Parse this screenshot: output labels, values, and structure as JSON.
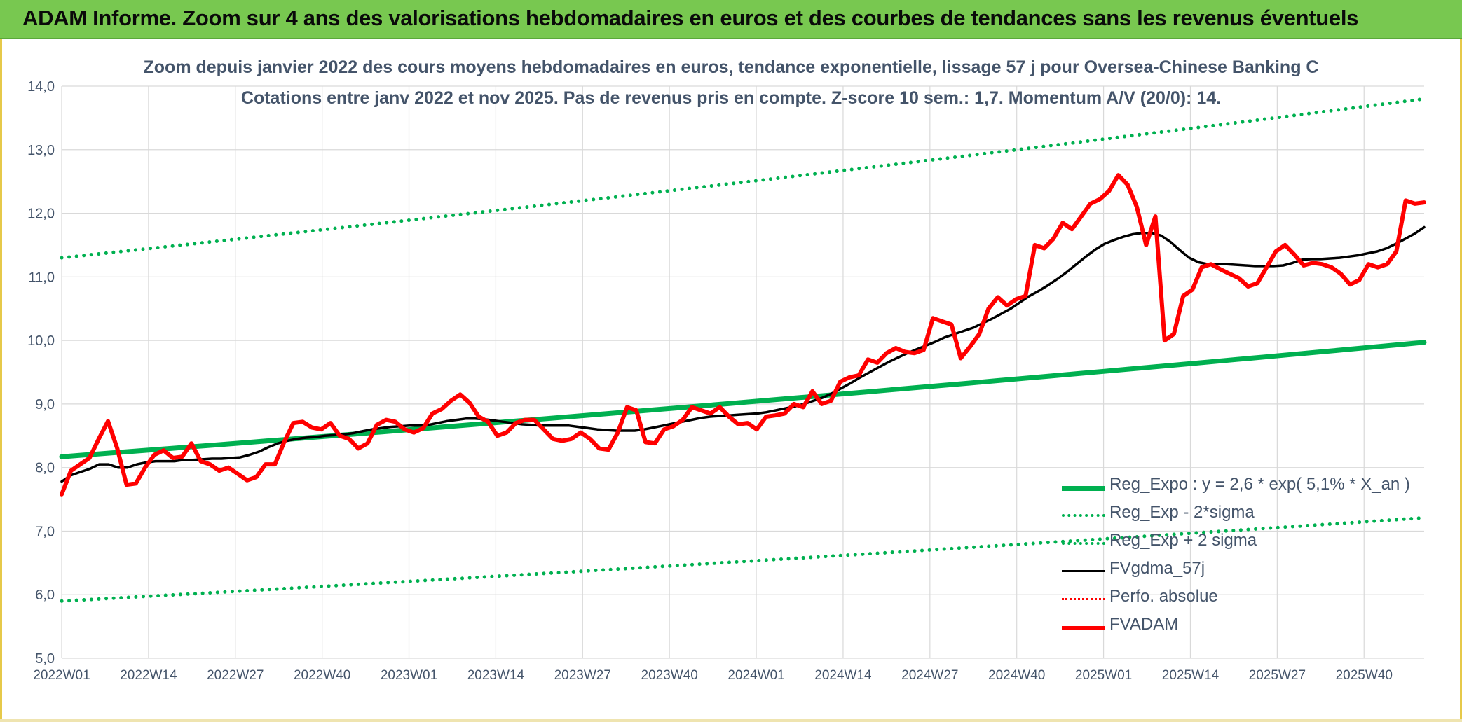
{
  "banner": {
    "title": "ADAM Informe. Zoom sur 4 ans des valorisations hebdomadaires en euros et des courbes de tendances sans les revenus éventuels"
  },
  "colors": {
    "banner_bg": "#78c850",
    "reg_expo": "#00b050",
    "fvgdma": "#000000",
    "fvadam": "#ff0000",
    "perfo": "#ff0000",
    "axis_text": "#44546a",
    "grid": "#d9d9d9"
  },
  "chart_data": {
    "type": "line",
    "title_line1": "Zoom depuis janvier 2022 des cours moyens hebdomadaires en euros, tendance exponentielle, lissage 57 j pour Oversea-Chinese Banking C",
    "title_line2": "Cotations entre janv 2022 et nov 2025. Pas de revenus pris en compte. Z-score 10 sem.: 1,7. Momentum A/V (20/0): 14.",
    "xlabel": "",
    "ylabel": "",
    "ylim": [
      5.0,
      14.0
    ],
    "y_ticks": [
      "5,0",
      "6,0",
      "7,0",
      "8,0",
      "9,0",
      "10,0",
      "11,0",
      "12,0",
      "13,0",
      "14,0"
    ],
    "x_tick_labels": [
      "2022W01",
      "2022W14",
      "2022W27",
      "2022W40",
      "2023W01",
      "2023W14",
      "2023W27",
      "2023W40",
      "2024W01",
      "2024W14",
      "2024W27",
      "2024W40",
      "2025W01",
      "2025W14",
      "2025W27",
      "2025W40"
    ],
    "x_weeks_total": 205,
    "grid": true,
    "legend_position": "bottom-right",
    "series": [
      {
        "name": "Reg_Expo : y = 2,6 * exp( 5,1% *  X_an )",
        "style": "solid-green",
        "start": 8.17,
        "end": 9.97
      },
      {
        "name": "Reg_Exp - 2*sigma",
        "style": "dotted-green",
        "start": 5.9,
        "end": 7.21
      },
      {
        "name": "Reg_Exp + 2 sigma",
        "style": "dotted-green",
        "start": 11.3,
        "end": 13.8
      },
      {
        "name": "FVgdma_57j",
        "style": "solid-black",
        "values": [
          7.78,
          7.88,
          7.93,
          7.98,
          8.05,
          8.05,
          8.0,
          8.0,
          8.05,
          8.08,
          8.1,
          8.1,
          8.1,
          8.12,
          8.12,
          8.13,
          8.14,
          8.14,
          8.15,
          8.16,
          8.2,
          8.25,
          8.32,
          8.38,
          8.42,
          8.45,
          8.47,
          8.48,
          8.5,
          8.51,
          8.52,
          8.54,
          8.57,
          8.6,
          8.62,
          8.64,
          8.65,
          8.66,
          8.66,
          8.67,
          8.7,
          8.73,
          8.75,
          8.77,
          8.77,
          8.76,
          8.74,
          8.72,
          8.7,
          8.68,
          8.67,
          8.66,
          8.66,
          8.66,
          8.66,
          8.64,
          8.62,
          8.6,
          8.59,
          8.58,
          8.58,
          8.58,
          8.6,
          8.63,
          8.66,
          8.69,
          8.72,
          8.75,
          8.78,
          8.8,
          8.81,
          8.82,
          8.83,
          8.84,
          8.85,
          8.87,
          8.9,
          8.93,
          8.96,
          9.0,
          9.05,
          9.1,
          9.17,
          9.25,
          9.33,
          9.42,
          9.5,
          9.58,
          9.66,
          9.73,
          9.8,
          9.86,
          9.92,
          9.98,
          10.05,
          10.1,
          10.15,
          10.2,
          10.27,
          10.34,
          10.42,
          10.5,
          10.6,
          10.7,
          10.78,
          10.87,
          10.97,
          11.08,
          11.2,
          11.32,
          11.43,
          11.52,
          11.58,
          11.63,
          11.67,
          11.69,
          11.69,
          11.65,
          11.55,
          11.42,
          11.3,
          11.23,
          11.2,
          11.2,
          11.2,
          11.19,
          11.18,
          11.17,
          11.17,
          11.17,
          11.18,
          11.22,
          11.27,
          11.28,
          11.28,
          11.29,
          11.3,
          11.32,
          11.34,
          11.37,
          11.4,
          11.45,
          11.52,
          11.6,
          11.68,
          11.78
        ]
      },
      {
        "name": "Perfo. absolue",
        "style": "dotted-red",
        "values": []
      },
      {
        "name": "FVADAM",
        "style": "solid-red",
        "values": [
          7.58,
          7.95,
          8.05,
          8.15,
          8.45,
          8.73,
          8.3,
          7.73,
          7.75,
          8.0,
          8.2,
          8.27,
          8.15,
          8.17,
          8.38,
          8.1,
          8.05,
          7.95,
          8.0,
          7.9,
          7.8,
          7.85,
          8.05,
          8.05,
          8.4,
          8.7,
          8.72,
          8.63,
          8.6,
          8.7,
          8.5,
          8.45,
          8.3,
          8.38,
          8.67,
          8.75,
          8.72,
          8.6,
          8.55,
          8.62,
          8.85,
          8.92,
          9.05,
          9.15,
          9.02,
          8.8,
          8.72,
          8.5,
          8.55,
          8.7,
          8.75,
          8.75,
          8.6,
          8.45,
          8.42,
          8.45,
          8.55,
          8.45,
          8.3,
          8.28,
          8.55,
          8.95,
          8.9,
          8.4,
          8.38,
          8.6,
          8.65,
          8.75,
          8.95,
          8.9,
          8.85,
          8.95,
          8.8,
          8.68,
          8.7,
          8.6,
          8.8,
          8.82,
          8.85,
          9.0,
          8.95,
          9.2,
          9.0,
          9.05,
          9.35,
          9.42,
          9.45,
          9.7,
          9.65,
          9.8,
          9.88,
          9.82,
          9.8,
          9.85,
          10.35,
          10.3,
          10.25,
          9.72,
          9.9,
          10.1,
          10.5,
          10.68,
          10.55,
          10.65,
          10.7,
          11.5,
          11.45,
          11.6,
          11.85,
          11.75,
          11.95,
          12.15,
          12.22,
          12.35,
          12.6,
          12.45,
          12.1,
          11.5,
          11.95,
          10.0,
          10.1,
          10.7,
          10.8,
          11.15,
          11.2,
          11.12,
          11.05,
          10.98,
          10.85,
          10.9,
          11.15,
          11.4,
          11.5,
          11.35,
          11.18,
          11.22,
          11.2,
          11.15,
          11.05,
          10.88,
          10.95,
          11.2,
          11.15,
          11.2,
          11.4,
          12.2,
          12.15,
          12.17
        ]
      }
    ]
  }
}
